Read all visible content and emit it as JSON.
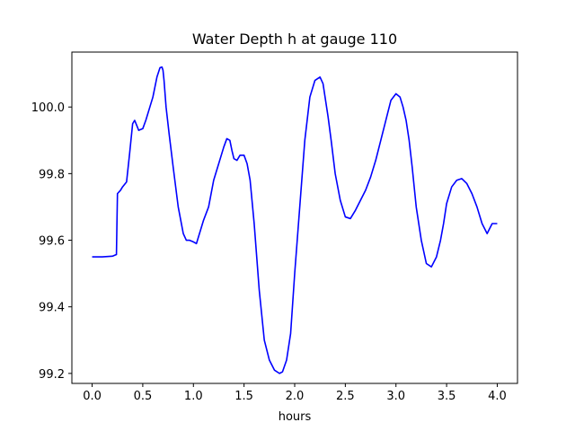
{
  "chart_data": {
    "type": "line",
    "title": "Water Depth h at gauge 110",
    "xlabel": "hours",
    "ylabel": "",
    "xlim": [
      -0.2,
      4.2
    ],
    "ylim": [
      99.17,
      100.165
    ],
    "xticks": [
      0.0,
      0.5,
      1.0,
      1.5,
      2.0,
      2.5,
      3.0,
      3.5,
      4.0
    ],
    "xtick_labels": [
      "0.0",
      "0.5",
      "1.0",
      "1.5",
      "2.0",
      "2.5",
      "3.0",
      "3.5",
      "4.0"
    ],
    "yticks": [
      99.2,
      99.4,
      99.6,
      99.8,
      100.0
    ],
    "ytick_labels": [
      "99.2",
      "99.4",
      "99.6",
      "99.8",
      "100.0"
    ],
    "grid": false,
    "series": [
      {
        "color": "#0000ff",
        "x": [
          0.0,
          0.1,
          0.2,
          0.24,
          0.245,
          0.25,
          0.28,
          0.3,
          0.34,
          0.37,
          0.4,
          0.42,
          0.44,
          0.46,
          0.5,
          0.53,
          0.57,
          0.6,
          0.64,
          0.67,
          0.69,
          0.7,
          0.71,
          0.73,
          0.76,
          0.8,
          0.85,
          0.9,
          0.93,
          0.96,
          1.0,
          1.03,
          1.06,
          1.1,
          1.15,
          1.2,
          1.25,
          1.3,
          1.33,
          1.36,
          1.38,
          1.4,
          1.43,
          1.46,
          1.5,
          1.53,
          1.56,
          1.6,
          1.65,
          1.7,
          1.75,
          1.8,
          1.85,
          1.88,
          1.92,
          1.96,
          2.0,
          2.05,
          2.1,
          2.15,
          2.2,
          2.25,
          2.28,
          2.3,
          2.33,
          2.36,
          2.4,
          2.45,
          2.5,
          2.55,
          2.6,
          2.65,
          2.7,
          2.75,
          2.8,
          2.85,
          2.9,
          2.95,
          3.0,
          3.04,
          3.07,
          3.1,
          3.13,
          3.16,
          3.2,
          3.25,
          3.3,
          3.35,
          3.4,
          3.44,
          3.47,
          3.5,
          3.55,
          3.6,
          3.65,
          3.7,
          3.75,
          3.8,
          3.85,
          3.9,
          3.95,
          4.0
        ],
        "y": [
          99.55,
          99.55,
          99.552,
          99.557,
          99.65,
          99.74,
          99.75,
          99.76,
          99.775,
          99.86,
          99.95,
          99.96,
          99.945,
          99.93,
          99.935,
          99.96,
          100.0,
          100.03,
          100.09,
          100.118,
          100.12,
          100.11,
          100.08,
          100.0,
          99.92,
          99.82,
          99.7,
          99.62,
          99.6,
          99.6,
          99.595,
          99.59,
          99.62,
          99.66,
          99.7,
          99.78,
          99.83,
          99.88,
          99.905,
          99.9,
          99.87,
          99.845,
          99.84,
          99.855,
          99.855,
          99.83,
          99.78,
          99.65,
          99.45,
          99.3,
          99.24,
          99.21,
          99.2,
          99.205,
          99.24,
          99.32,
          99.5,
          99.7,
          99.9,
          100.03,
          100.08,
          100.09,
          100.07,
          100.03,
          99.97,
          99.9,
          99.8,
          99.72,
          99.67,
          99.665,
          99.69,
          99.72,
          99.75,
          99.79,
          99.84,
          99.9,
          99.96,
          100.02,
          100.04,
          100.03,
          100.0,
          99.96,
          99.9,
          99.82,
          99.7,
          99.6,
          99.53,
          99.52,
          99.55,
          99.6,
          99.65,
          99.71,
          99.76,
          99.78,
          99.785,
          99.77,
          99.74,
          99.7,
          99.65,
          99.62,
          99.65,
          99.65
        ]
      }
    ]
  }
}
